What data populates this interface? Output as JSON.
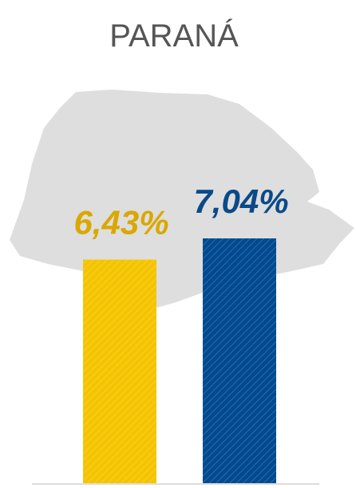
{
  "chart_data": {
    "type": "bar",
    "title": "PARANÁ",
    "categories": [
      null,
      null
    ],
    "values": [
      6.43,
      7.04
    ],
    "value_labels": [
      "6,43%",
      "7,04%"
    ],
    "colors": [
      "#f5c400",
      "#004a8f"
    ],
    "label_colors": [
      "#d9a800",
      "#0b4a88"
    ]
  }
}
